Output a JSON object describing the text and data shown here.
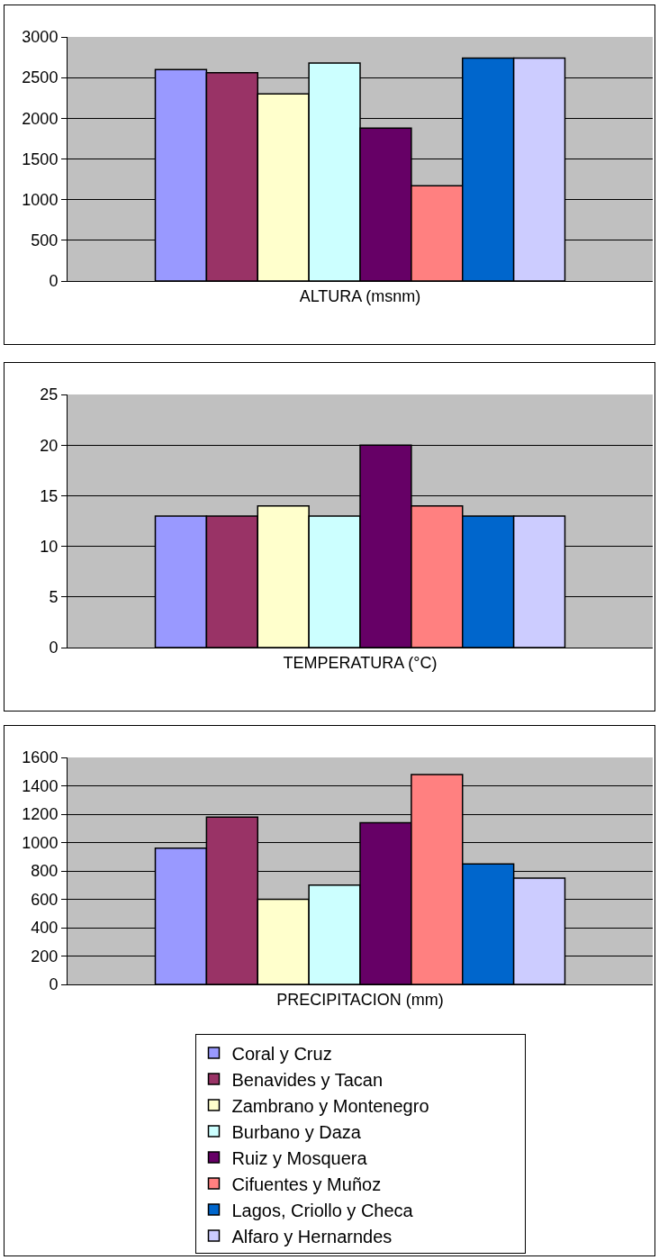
{
  "chart_data": [
    {
      "type": "bar",
      "categories": [
        "ALTURA (msnm)"
      ],
      "ylim": [
        0,
        3000
      ],
      "yticks": [
        0,
        500,
        1000,
        1500,
        2000,
        2500,
        3000
      ],
      "grid": "y",
      "legend": false,
      "series": [
        {
          "color": "#9999ff",
          "values": [
            2600
          ]
        },
        {
          "color": "#993366",
          "values": [
            2560
          ]
        },
        {
          "color": "#ffffcc",
          "values": [
            2300
          ]
        },
        {
          "color": "#ccffff",
          "values": [
            2680
          ]
        },
        {
          "color": "#660066",
          "values": [
            1880
          ]
        },
        {
          "color": "#ff8080",
          "values": [
            1170
          ]
        },
        {
          "color": "#0066cc",
          "values": [
            2740
          ]
        },
        {
          "color": "#ccccff",
          "values": [
            2740
          ]
        }
      ]
    },
    {
      "type": "bar",
      "categories": [
        "TEMPERATURA (°C)"
      ],
      "ylim": [
        0,
        25
      ],
      "yticks": [
        0,
        5,
        10,
        15,
        20,
        25
      ],
      "grid": "y",
      "legend": false,
      "series": [
        {
          "color": "#9999ff",
          "values": [
            13
          ]
        },
        {
          "color": "#993366",
          "values": [
            13
          ]
        },
        {
          "color": "#ffffcc",
          "values": [
            14
          ]
        },
        {
          "color": "#ccffff",
          "values": [
            13
          ]
        },
        {
          "color": "#660066",
          "values": [
            20
          ]
        },
        {
          "color": "#ff8080",
          "values": [
            14
          ]
        },
        {
          "color": "#0066cc",
          "values": [
            13
          ]
        },
        {
          "color": "#ccccff",
          "values": [
            13
          ]
        }
      ]
    },
    {
      "type": "bar",
      "categories": [
        "PRECIPITACION (mm)"
      ],
      "ylim": [
        0,
        1600
      ],
      "yticks": [
        0,
        200,
        400,
        600,
        800,
        1000,
        1200,
        1400,
        1600
      ],
      "grid": "y",
      "legend": "bottom",
      "series": [
        {
          "name": "Coral y Cruz",
          "color": "#9999ff",
          "values": [
            960
          ]
        },
        {
          "name": "Benavides y Tacan",
          "color": "#993366",
          "values": [
            1180
          ]
        },
        {
          "name": "Zambrano y Montenegro",
          "color": "#ffffcc",
          "values": [
            600
          ]
        },
        {
          "name": "Burbano y Daza",
          "color": "#ccffff",
          "values": [
            700
          ]
        },
        {
          "name": "Ruiz y Mosquera",
          "color": "#660066",
          "values": [
            1140
          ]
        },
        {
          "name": "Cifuentes y Muñoz",
          "color": "#ff8080",
          "values": [
            1480
          ]
        },
        {
          "name": "Lagos, Criollo y Checa",
          "color": "#0066cc",
          "values": [
            850
          ]
        },
        {
          "name": "Alfaro y Hernarndes",
          "color": "#ccccff",
          "values": [
            750
          ]
        }
      ]
    }
  ]
}
